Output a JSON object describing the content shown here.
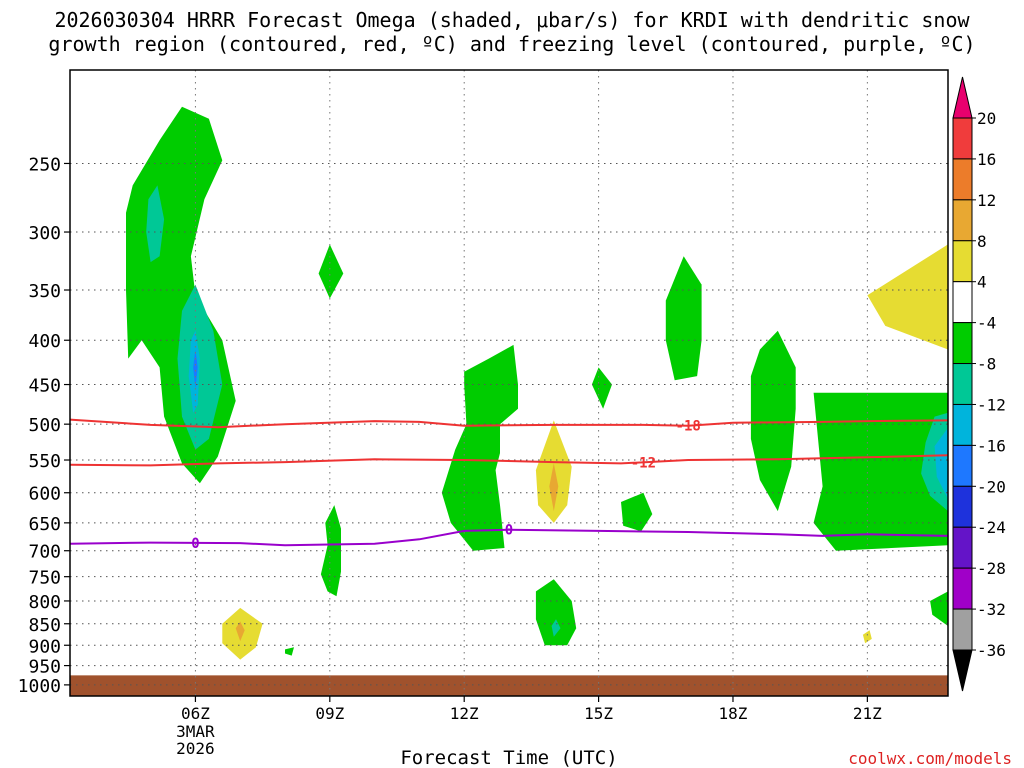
{
  "chart_data": {
    "type": "heatmap",
    "title_line1": "2026030304 HRRR Forecast Omega (shaded, μbar/s) for KRDI with dendritic snow",
    "title_line2": "growth region (contoured, red, ºC) and freezing level (contoured, purple, ºC)",
    "xlabel": "Forecast Time (UTC)",
    "ylabel": "",
    "watermark": "coolwx.com/models",
    "x_unit": "hours since 00Z 3 MAR 2026",
    "xlim": [
      3.2,
      22.8
    ],
    "x_ticks": [
      {
        "hour": 6,
        "label": "06Z",
        "sublabels": [
          "3MAR",
          "2026"
        ]
      },
      {
        "hour": 9,
        "label": "09Z"
      },
      {
        "hour": 12,
        "label": "12Z"
      },
      {
        "hour": 15,
        "label": "15Z"
      },
      {
        "hour": 18,
        "label": "18Z"
      },
      {
        "hour": 21,
        "label": "21Z"
      }
    ],
    "y_unit": "hPa",
    "ylim": [
      1030,
      195
    ],
    "y_scale": "log",
    "y_ticks": [
      250,
      300,
      350,
      400,
      450,
      500,
      550,
      600,
      650,
      700,
      750,
      800,
      850,
      900,
      950,
      1000
    ],
    "ground_level_hPa": 975,
    "ground_color": "#a0522d",
    "colorbar": {
      "levels": [
        20,
        16,
        12,
        8,
        4,
        -4,
        -8,
        -12,
        -16,
        -20,
        -24,
        -28,
        -32,
        -36
      ],
      "colors": [
        "#e8006e",
        "#f03c3c",
        "#ec7c2a",
        "#e8a832",
        "#e6dc32",
        "#ffffff",
        "#00cc00",
        "#00c896",
        "#00b4dc",
        "#1e78ff",
        "#1e32dc",
        "#6414c8",
        "#a000c8",
        "#a0a0a0",
        "#000000"
      ]
    },
    "omega_regions": [
      {
        "label": "-4",
        "color": "#00cc00",
        "points": [
          [
            4.5,
            420
          ],
          [
            4.45,
            350
          ],
          [
            4.45,
            285
          ],
          [
            4.6,
            265
          ],
          [
            5.2,
            235
          ],
          [
            5.7,
            215
          ],
          [
            6.3,
            222
          ],
          [
            6.6,
            248
          ],
          [
            6.2,
            275
          ],
          [
            5.9,
            320
          ],
          [
            6,
            355
          ],
          [
            6.6,
            400
          ],
          [
            6.9,
            470
          ],
          [
            6.5,
            545
          ],
          [
            6.1,
            585
          ],
          [
            5.7,
            555
          ],
          [
            5.3,
            490
          ],
          [
            5.2,
            430
          ],
          [
            4.8,
            400
          ]
        ]
      },
      {
        "label": "-8",
        "color": "#00c896",
        "points": [
          [
            4.9,
            300
          ],
          [
            4.95,
            275
          ],
          [
            5.15,
            265
          ],
          [
            5.3,
            290
          ],
          [
            5.2,
            320
          ],
          [
            5,
            325
          ]
        ]
      },
      {
        "label": "-8",
        "color": "#00c896",
        "points": [
          [
            5.6,
            420
          ],
          [
            5.7,
            370
          ],
          [
            6,
            345
          ],
          [
            6.4,
            390
          ],
          [
            6.6,
            450
          ],
          [
            6.3,
            520
          ],
          [
            6,
            535
          ],
          [
            5.7,
            490
          ]
        ]
      },
      {
        "label": "-12",
        "color": "#00b4dc",
        "points": [
          [
            5.85,
            440
          ],
          [
            5.9,
            400
          ],
          [
            6,
            390
          ],
          [
            6.1,
            420
          ],
          [
            6.05,
            475
          ],
          [
            5.95,
            485
          ]
        ]
      },
      {
        "label": "-16",
        "color": "#1e78ff",
        "points": [
          [
            5.95,
            430
          ],
          [
            6,
            410
          ],
          [
            6.05,
            430
          ],
          [
            6,
            455
          ]
        ]
      },
      {
        "label": "-4",
        "color": "#00cc00",
        "points": [
          [
            9,
            310
          ],
          [
            9.3,
            335
          ],
          [
            9,
            358
          ],
          [
            8.75,
            335
          ]
        ]
      },
      {
        "label": "-4",
        "color": "#00cc00",
        "points": [
          [
            9.1,
            620
          ],
          [
            9.25,
            660
          ],
          [
            9.25,
            740
          ],
          [
            9.15,
            790
          ],
          [
            8.95,
            780
          ],
          [
            8.8,
            745
          ],
          [
            8.95,
            690
          ],
          [
            8.9,
            650
          ]
        ]
      },
      {
        "label": "-4",
        "color": "#00cc00",
        "points": [
          [
            12,
            450
          ],
          [
            12,
            435
          ],
          [
            12.55,
            420
          ],
          [
            13.1,
            405
          ],
          [
            13.2,
            450
          ],
          [
            13.2,
            480
          ],
          [
            12.8,
            500
          ],
          [
            12.8,
            540
          ],
          [
            12.7,
            565
          ],
          [
            12.8,
            620
          ],
          [
            12.9,
            695
          ],
          [
            12.2,
            700
          ],
          [
            11.7,
            650
          ],
          [
            11.5,
            600
          ],
          [
            11.8,
            535
          ],
          [
            12.05,
            500
          ]
        ]
      },
      {
        "label": "-4",
        "color": "#00cc00",
        "points": [
          [
            15,
            430
          ],
          [
            15.3,
            450
          ],
          [
            15.1,
            480
          ],
          [
            14.85,
            450
          ]
        ]
      },
      {
        "label": "-4",
        "color": "#00cc00",
        "points": [
          [
            15.5,
            615
          ],
          [
            16,
            600
          ],
          [
            16.2,
            635
          ],
          [
            15.95,
            665
          ],
          [
            15.55,
            655
          ]
        ]
      },
      {
        "label": "-4",
        "color": "#00cc00",
        "points": [
          [
            16.5,
            360
          ],
          [
            16.9,
            320
          ],
          [
            17.3,
            345
          ],
          [
            17.3,
            400
          ],
          [
            17.2,
            440
          ],
          [
            16.7,
            445
          ],
          [
            16.5,
            400
          ]
        ]
      },
      {
        "label": "-4",
        "color": "#00cc00",
        "points": [
          [
            18.4,
            440
          ],
          [
            18.6,
            410
          ],
          [
            19,
            390
          ],
          [
            19.4,
            430
          ],
          [
            19.4,
            480
          ],
          [
            19.3,
            560
          ],
          [
            19,
            630
          ],
          [
            18.6,
            580
          ],
          [
            18.4,
            520
          ]
        ]
      },
      {
        "label": "-4",
        "color": "#00cc00",
        "points": [
          [
            19.8,
            460
          ],
          [
            22.8,
            460
          ],
          [
            22.8,
            690
          ],
          [
            20.3,
            700
          ],
          [
            19.8,
            650
          ],
          [
            20,
            590
          ]
        ]
      },
      {
        "label": "-8",
        "color": "#00c896",
        "points": [
          [
            22.3,
            525
          ],
          [
            22.5,
            490
          ],
          [
            22.8,
            485
          ],
          [
            22.8,
            630
          ],
          [
            22.4,
            605
          ],
          [
            22.2,
            570
          ]
        ]
      },
      {
        "label": "-12",
        "color": "#00b4dc",
        "points": [
          [
            22.5,
            530
          ],
          [
            22.8,
            505
          ],
          [
            22.8,
            610
          ],
          [
            22.55,
            575
          ]
        ]
      },
      {
        "label": "-4",
        "color": "#00cc00",
        "points": [
          [
            22.4,
            800
          ],
          [
            22.8,
            780
          ],
          [
            22.8,
            855
          ],
          [
            22.45,
            830
          ]
        ]
      },
      {
        "label": "-4",
        "color": "#00cc00",
        "points": [
          [
            13.6,
            780
          ],
          [
            14,
            755
          ],
          [
            14.4,
            800
          ],
          [
            14.5,
            860
          ],
          [
            14.3,
            900
          ],
          [
            13.8,
            900
          ],
          [
            13.6,
            840
          ]
        ]
      },
      {
        "label": "-8",
        "color": "#00c896",
        "points": [
          [
            13.95,
            855
          ],
          [
            14.05,
            840
          ],
          [
            14.15,
            860
          ],
          [
            14,
            880
          ]
        ]
      },
      {
        "label": "-4",
        "color": "#00cc00",
        "points": [
          [
            8,
            910
          ],
          [
            8.2,
            905
          ],
          [
            8.15,
            925
          ],
          [
            8,
            920
          ]
        ]
      },
      {
        "label": "4",
        "color": "#e6dc32",
        "points": [
          [
            14,
            495
          ],
          [
            14.4,
            560
          ],
          [
            14.3,
            620
          ],
          [
            14,
            650
          ],
          [
            13.65,
            620
          ],
          [
            13.6,
            565
          ]
        ]
      },
      {
        "label": "8",
        "color": "#e8a832",
        "points": [
          [
            14,
            555
          ],
          [
            14.1,
            590
          ],
          [
            14,
            630
          ],
          [
            13.9,
            590
          ]
        ]
      },
      {
        "label": "4",
        "color": "#e6dc32",
        "points": [
          [
            6.6,
            850
          ],
          [
            7,
            815
          ],
          [
            7.5,
            850
          ],
          [
            7.35,
            905
          ],
          [
            7,
            935
          ],
          [
            6.6,
            895
          ]
        ]
      },
      {
        "label": "8",
        "color": "#e8a832",
        "points": [
          [
            6.9,
            860
          ],
          [
            7,
            845
          ],
          [
            7.1,
            865
          ],
          [
            7,
            890
          ]
        ]
      },
      {
        "label": "4",
        "color": "#e6dc32",
        "points": [
          [
            21,
            355
          ],
          [
            22.8,
            310
          ],
          [
            22.8,
            410
          ],
          [
            21.4,
            385
          ]
        ]
      },
      {
        "label": "4",
        "color": "#e6dc32",
        "points": [
          [
            20.9,
            875
          ],
          [
            21.05,
            865
          ],
          [
            21.1,
            885
          ],
          [
            20.95,
            895
          ]
        ]
      }
    ],
    "contours": [
      {
        "name": "dgz-top",
        "value": "-18",
        "color": "#ee3333",
        "label_at": 17,
        "points": [
          [
            3.2,
            494
          ],
          [
            5,
            501
          ],
          [
            6.5,
            504
          ],
          [
            8,
            500
          ],
          [
            10,
            496
          ],
          [
            11,
            497
          ],
          [
            12,
            502
          ],
          [
            14,
            501
          ],
          [
            16,
            501
          ],
          [
            17,
            502
          ],
          [
            18,
            498
          ],
          [
            20,
            497
          ],
          [
            21,
            496
          ],
          [
            22.8,
            495
          ]
        ]
      },
      {
        "name": "dgz-bottom",
        "value": "-12",
        "color": "#ee3333",
        "label_at": 16,
        "points": [
          [
            3.2,
            557
          ],
          [
            5,
            558
          ],
          [
            6.5,
            555
          ],
          [
            8,
            553
          ],
          [
            10,
            549
          ],
          [
            12,
            550
          ],
          [
            14,
            553
          ],
          [
            15.5,
            555
          ],
          [
            17,
            550
          ],
          [
            19,
            549
          ],
          [
            21,
            546
          ],
          [
            22.8,
            543
          ]
        ]
      },
      {
        "name": "freezing-level",
        "value": "0",
        "color": "#9900cc",
        "label_at_list": [
          6,
          13
        ],
        "points": [
          [
            3.2,
            687
          ],
          [
            5,
            685
          ],
          [
            7,
            686
          ],
          [
            8,
            690
          ],
          [
            10,
            687
          ],
          [
            11,
            679
          ],
          [
            12,
            664
          ],
          [
            13,
            662
          ],
          [
            15,
            664
          ],
          [
            17,
            666
          ],
          [
            19,
            670
          ],
          [
            20,
            673
          ],
          [
            21,
            670
          ],
          [
            22.8,
            673
          ]
        ]
      }
    ]
  }
}
